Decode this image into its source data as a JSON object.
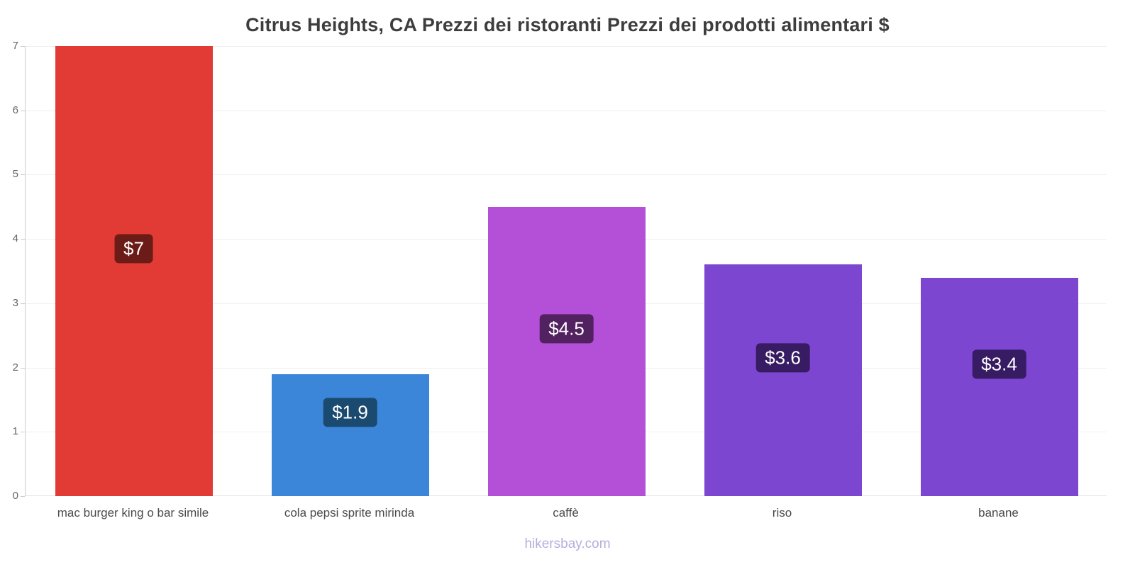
{
  "title": "Citrus Heights, CA Prezzi dei ristoranti Prezzi dei prodotti alimentari $",
  "footer": "hikersbay.com",
  "chart_data": {
    "type": "bar",
    "title": "Citrus Heights, CA Prezzi dei ristoranti Prezzi dei prodotti alimentari $",
    "categories": [
      "mac burger king o bar simile",
      "cola pepsi sprite mirinda",
      "caffè",
      "riso",
      "banane"
    ],
    "values": [
      7,
      1.9,
      4.5,
      3.6,
      3.4
    ],
    "value_labels": [
      "$7",
      "$1.9",
      "$4.5",
      "$3.6",
      "$3.4"
    ],
    "bar_colors": [
      "#e23b35",
      "#3b86d8",
      "#b44fd8",
      "#7c46d0",
      "#7c46d0"
    ],
    "label_bg_colors": [
      "#6b1c16",
      "#1b4a70",
      "#52215f",
      "#371b63",
      "#371b63"
    ],
    "xlabel": "",
    "ylabel": "",
    "ylim": [
      0,
      7
    ],
    "yticks": [
      0,
      1,
      2,
      3,
      4,
      5,
      6,
      7
    ],
    "grid": true,
    "legend": false,
    "currency": "$",
    "watermark": "hikersbay.com"
  }
}
